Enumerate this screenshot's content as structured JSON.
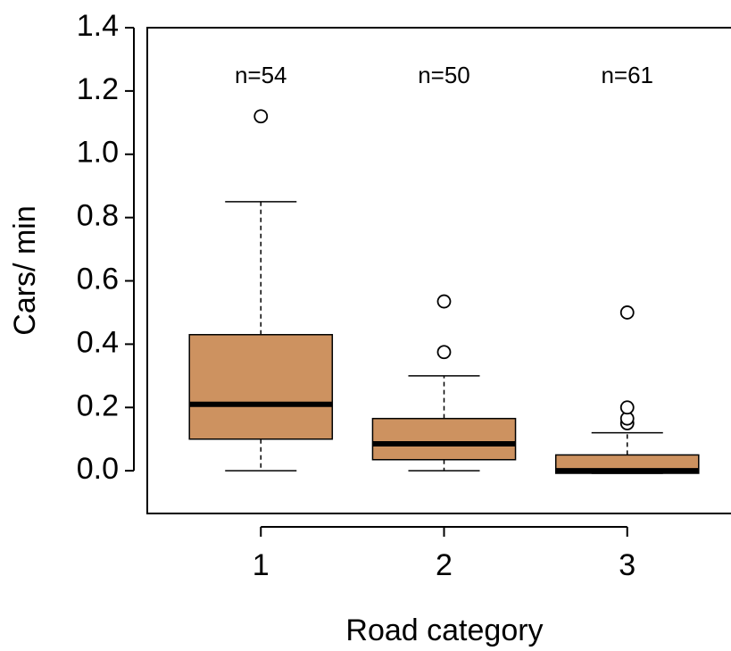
{
  "chart_data": {
    "type": "box",
    "x_label": "Road category",
    "y_label": "Cars/ min",
    "categories": [
      "1",
      "2",
      "3"
    ],
    "annotations": [
      "n=54",
      "n=50",
      "n=61"
    ],
    "color": "#cd9260",
    "boxes": [
      {
        "whisker_low": 0,
        "q1": 0.1,
        "median": 0.21,
        "q3": 0.43,
        "whisker_high": 0.85,
        "outliers": [
          1.12
        ]
      },
      {
        "whisker_low": 0,
        "q1": 0.035,
        "median": 0.085,
        "q3": 0.165,
        "whisker_high": 0.3,
        "outliers": [
          0.375,
          0.535
        ]
      },
      {
        "whisker_low": -0.008,
        "q1": -0.008,
        "median": 0,
        "q3": 0.05,
        "whisker_high": 0.12,
        "outliers": [
          0.15,
          0.165,
          0.2,
          0.5
        ]
      }
    ],
    "ylim": [
      -0.135,
      1.4
    ],
    "yticks": [
      {
        "value": 0,
        "label": "0.0"
      },
      0.2,
      0.4,
      0.6,
      0.8,
      {
        "value": 1,
        "label": "1.0"
      },
      1.2,
      1.4
    ]
  }
}
